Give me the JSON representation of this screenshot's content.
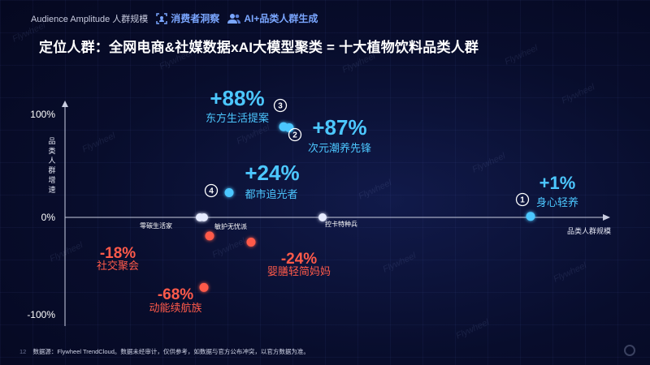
{
  "header": {
    "brand": "Audience Amplitude 人群规模",
    "tab1": "消费者洞察",
    "tab2": "AI+品类人群生成"
  },
  "title": "定位人群：全网电商&社媒数据xAI大模型聚类 = 十大植物饮料品类人群",
  "footer": {
    "page": "12",
    "source": "数据源：Flywheel TrendCloud。数据未经审计，仅供参考，如数据与官方公布冲突，以官方数据为准。"
  },
  "watermark": "Flywheel",
  "colors": {
    "positive": "#4cc7ff",
    "negative": "#ff5a4a",
    "neutral": "#e6ebff",
    "accent": "#7aa6ff"
  },
  "chart_data": {
    "type": "scatter",
    "xlabel": "品类人群规模",
    "ylabel": "品类人群增速",
    "yticks": [
      "100%",
      "0%",
      "-100%"
    ],
    "ylim": [
      -100,
      100
    ],
    "points": [
      {
        "name": "身心轻养",
        "pct": "+1%",
        "y": 1,
        "rank": "1",
        "group": "positive"
      },
      {
        "name": "次元潮养先锋",
        "pct": "+87%",
        "y": 87,
        "rank": "2",
        "group": "positive"
      },
      {
        "name": "东方生活提案",
        "pct": "+88%",
        "y": 88,
        "rank": "3",
        "group": "positive"
      },
      {
        "name": "都市追光者",
        "pct": "+24%",
        "y": 24,
        "rank": "4",
        "group": "positive"
      },
      {
        "name": "社交聚会",
        "pct": "-18%",
        "y": -18,
        "group": "negative"
      },
      {
        "name": "婴膳轻简妈妈",
        "pct": "-24%",
        "y": -24,
        "group": "negative"
      },
      {
        "name": "动能续航族",
        "pct": "-68%",
        "y": -68,
        "group": "negative"
      },
      {
        "name": "零碳生活家",
        "y": 0,
        "group": "neutral"
      },
      {
        "name": "敏护无忧派",
        "y": 0,
        "group": "neutral"
      },
      {
        "name": "控卡特种兵",
        "y": 0,
        "group": "neutral"
      }
    ]
  }
}
